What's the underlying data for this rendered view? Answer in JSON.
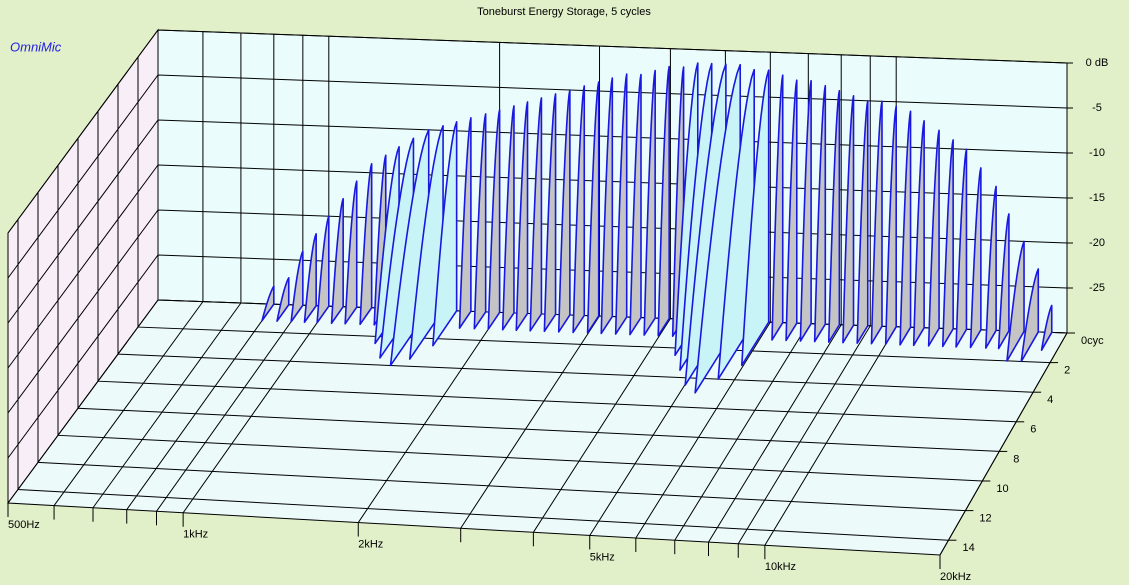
{
  "chart_data": {
    "type": "waterfall",
    "title": "Toneburst Energy Storage, 5 cycles",
    "brand": "OmniMic",
    "x": [
      800,
      850,
      900,
      950,
      1000,
      1060,
      1120,
      1190,
      1260,
      1330,
      1410,
      1500,
      1590,
      1680,
      1780,
      1890,
      2000,
      2120,
      2240,
      2370,
      2510,
      2660,
      2820,
      2990,
      3160,
      3350,
      3550,
      3760,
      3980,
      4220,
      4470,
      4730,
      5010,
      5310,
      5620,
      5960,
      6310,
      6680,
      7080,
      7500,
      7940,
      8410,
      8910,
      9440,
      10000,
      10600,
      11200,
      11900,
      12600,
      13300,
      14100,
      15000,
      15800,
      16800,
      17800,
      18800
    ],
    "values": [
      -28,
      -27,
      -24,
      -22,
      -20,
      -18,
      -16,
      -14,
      -13,
      -12,
      -11,
      -10,
      -9.5,
      -9,
      -8.5,
      -8,
      -7.5,
      -7,
      -6.5,
      -6,
      -5.5,
      -5,
      -4.5,
      -4,
      -3.5,
      -3,
      -3,
      -2.5,
      -2,
      -2,
      -1.5,
      -1.5,
      -1.5,
      -1.5,
      -2,
      -2,
      -2.5,
      -3,
      -3,
      -3.5,
      -4,
      -4.5,
      -5,
      -5,
      -5.5,
      -6,
      -7,
      -8,
      -9,
      -10,
      -12,
      -14,
      -17,
      -20,
      -23,
      -27
    ],
    "decay": [
      1.2,
      1.2,
      1.2,
      1.2,
      1.2,
      1.2,
      1.2,
      1.2,
      1.2,
      2.5,
      3.5,
      4,
      3.5,
      2.5,
      1.2,
      1.2,
      1.2,
      1.2,
      1.2,
      1.2,
      1.2,
      1.2,
      1.2,
      1.2,
      1.2,
      1.2,
      1.2,
      1.2,
      1.2,
      1.2,
      2.5,
      3.5,
      4.5,
      5,
      4,
      3,
      1.2,
      1.2,
      1.2,
      1.2,
      1.2,
      1.2,
      1.2,
      1.2,
      1.2,
      1.2,
      1.2,
      1.2,
      1.2,
      1.2,
      1.2,
      1.2,
      1.2,
      2,
      2,
      1.2
    ],
    "color": "#c4c4c4",
    "line_color": "#1818e0",
    "xlim": [
      500,
      20000
    ],
    "log_x": true,
    "xticks": [
      {
        "value": 500,
        "label": "500Hz"
      },
      {
        "value": 1000,
        "label": "1kHz"
      },
      {
        "value": 2000,
        "label": "2kHz"
      },
      {
        "value": 5000,
        "label": "5kHz"
      },
      {
        "value": 10000,
        "label": "10kHz"
      },
      {
        "value": 20000,
        "label": "20kHz"
      }
    ],
    "xminor": [
      600,
      700,
      800,
      900,
      3000,
      4000,
      6000,
      7000,
      8000,
      9000
    ],
    "ylim": [
      -30,
      0
    ],
    "yticks": [
      {
        "value": 0,
        "label": "0 dB"
      },
      -5,
      -10,
      -15,
      -20,
      -25
    ],
    "zlim": [
      0,
      15
    ],
    "zticks": [
      {
        "value": 0,
        "label": "0cyc"
      },
      2,
      4,
      6,
      8,
      10,
      12,
      14
    ],
    "grid": true
  }
}
